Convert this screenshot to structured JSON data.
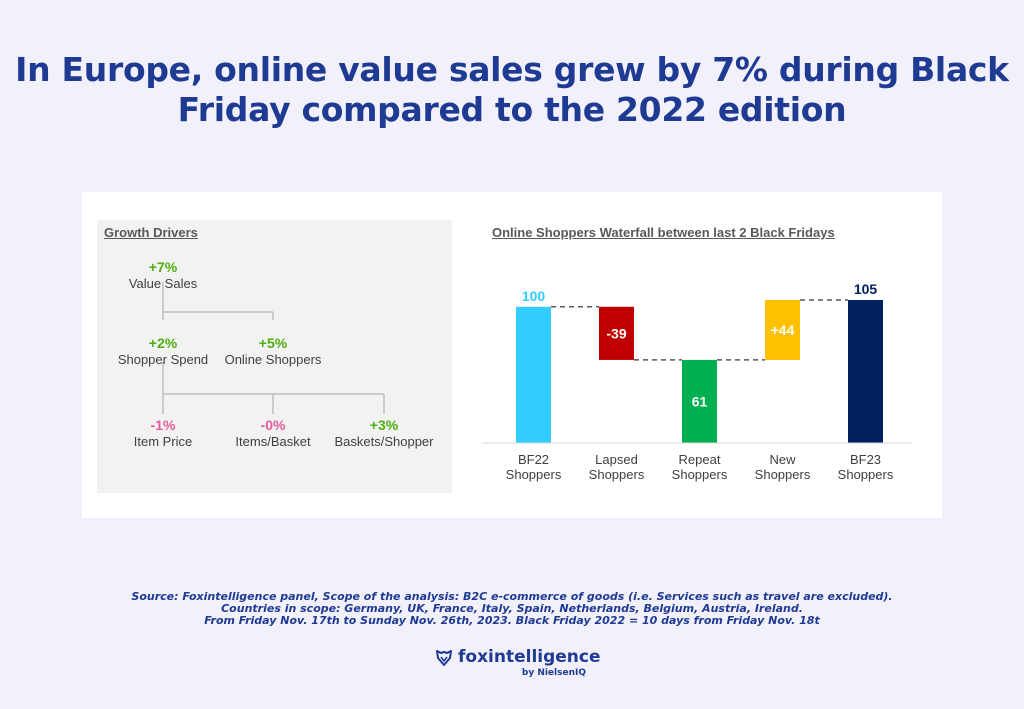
{
  "headline": {
    "line1": "In Europe, online value sales grew by 7% during Black",
    "line2": "Friday compared to the 2022 edition"
  },
  "growth_drivers": {
    "title": "Growth Drivers",
    "nodes": [
      {
        "id": "value-sales",
        "pct": "+7%",
        "label": "Value Sales",
        "color": "#4caf0f"
      },
      {
        "id": "shopper-spend",
        "pct": "+2%",
        "label": "Shopper Spend",
        "color": "#4caf0f"
      },
      {
        "id": "online-shoppers",
        "pct": "+5%",
        "label": "Online Shoppers",
        "color": "#4caf0f"
      },
      {
        "id": "item-price",
        "pct": "-1%",
        "label": "Item Price",
        "color": "#e8589a"
      },
      {
        "id": "items-basket",
        "pct": "-0%",
        "label": "Items/Basket",
        "color": "#e8589a"
      },
      {
        "id": "baskets-shopper",
        "pct": "+3%",
        "label": "Baskets/Shopper",
        "color": "#4caf0f"
      }
    ]
  },
  "chart_data": {
    "type": "bar",
    "subtype": "waterfall",
    "title": "Online Shoppers Waterfall between last 2 Black Fridays",
    "categories": [
      "BF22 Shoppers",
      "Lapsed Shoppers",
      "Repeat Shoppers",
      "New Shoppers",
      "BF23 Shoppers"
    ],
    "values": [
      100,
      -39,
      61,
      44,
      105
    ],
    "data_labels": [
      "100",
      "-39",
      "61",
      "+44",
      "105"
    ],
    "bars": [
      {
        "category": "BF22 Shoppers",
        "start": 0,
        "end": 100,
        "color": "#33ccff",
        "label": "100"
      },
      {
        "category": "Lapsed Shoppers",
        "start": 100,
        "end": 61,
        "color": "#c00000",
        "label": "-39"
      },
      {
        "category": "Repeat Shoppers",
        "start": 0,
        "end": 61,
        "color": "#00b050",
        "label": "61"
      },
      {
        "category": "New Shoppers",
        "start": 61,
        "end": 105,
        "color": "#ffc000",
        "label": "+44"
      },
      {
        "category": "BF23 Shoppers",
        "start": 0,
        "end": 105,
        "color": "#002060",
        "label": "105"
      }
    ],
    "ylim": [
      0,
      105
    ],
    "grid": false,
    "connectors": "dashed"
  },
  "source": {
    "line1": "Source: Foxintelligence panel, Scope of the analysis: B2C e-commerce of goods (i.e. Services such as travel are excluded).",
    "line2": "Countries in scope: Germany, UK, France, Italy, Spain, Netherlands, Belgium, Austria, Ireland.",
    "line3": "From Friday Nov. 17th to Sunday Nov. 26th, 2023. Black Friday 2022 = 10 days from Friday Nov. 18t"
  },
  "logo": {
    "name": "foxintelligence",
    "sub": "by NielsenIQ",
    "icon": "fox-shield-icon"
  }
}
